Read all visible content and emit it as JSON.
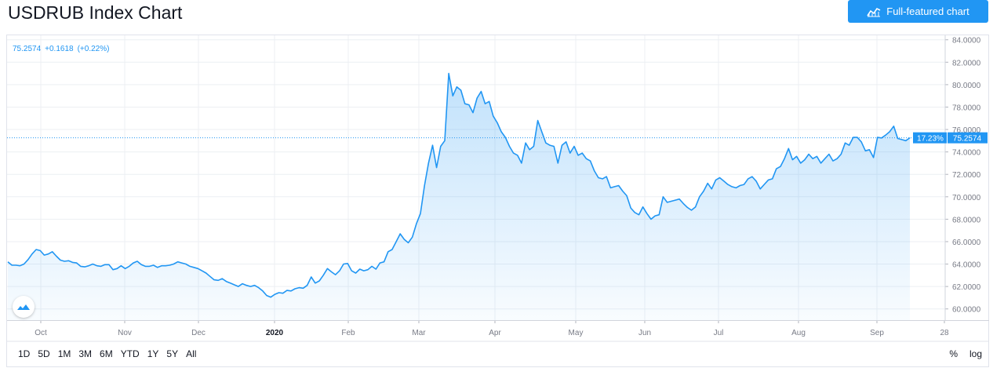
{
  "header": {
    "title": "USDRUB Index Chart",
    "full_chart_label": "Full-featured chart",
    "full_chart_icon": "chart-line-icon"
  },
  "legend": {
    "price": "75.2574",
    "change": "+0.1618",
    "change_pct": "(+0.22%)"
  },
  "price_tag": {
    "pct": "17.23%",
    "value": "75.2574"
  },
  "ranges": [
    "1D",
    "5D",
    "1M",
    "3M",
    "6M",
    "YTD",
    "1Y",
    "5Y",
    "All"
  ],
  "scale_toggles": [
    "%",
    "log"
  ],
  "colors": {
    "line": "#2196f3",
    "tag": "#2196f3",
    "grid": "#eceff3",
    "axis_text": "#787b86"
  },
  "chart_data": {
    "type": "area",
    "ylim": [
      59,
      84.4
    ],
    "y_ticks": [
      "60.0000",
      "62.0000",
      "64.0000",
      "66.0000",
      "68.0000",
      "70.0000",
      "72.0000",
      "74.0000",
      "76.0000",
      "78.0000",
      "80.0000",
      "82.0000",
      "84.0000"
    ],
    "x_ticks": [
      "Oct",
      "Nov",
      "Dec",
      "2020",
      "Feb",
      "Mar",
      "Apr",
      "May",
      "Jun",
      "Jul",
      "Aug",
      "Sep",
      "28"
    ],
    "x_bold": [
      "2020"
    ],
    "series": [
      {
        "values": [
          64.2,
          63.9,
          63.9,
          63.85,
          64.0,
          64.4,
          64.9,
          65.3,
          65.2,
          64.8,
          64.9,
          65.1,
          64.7,
          64.35,
          64.25,
          64.3,
          64.15,
          64.1,
          63.8,
          63.75,
          63.85,
          64.0,
          63.85,
          63.8,
          63.95,
          63.95,
          63.5,
          63.6,
          63.85,
          63.6,
          63.8,
          64.1,
          64.25,
          63.95,
          63.8,
          63.8,
          63.9,
          63.7,
          63.85,
          63.85,
          63.9,
          64.0,
          64.2,
          64.1,
          64.0,
          63.8,
          63.7,
          63.6,
          63.4,
          63.2,
          62.9,
          62.6,
          62.55,
          62.7,
          62.45,
          62.3,
          62.15,
          62.0,
          62.25,
          62.1,
          62.0,
          62.1,
          61.9,
          61.6,
          61.2,
          61.05,
          61.3,
          61.45,
          61.4,
          61.65,
          61.6,
          61.8,
          61.9,
          61.85,
          62.1,
          62.85,
          62.3,
          62.5,
          63.0,
          63.6,
          63.3,
          63.05,
          63.4,
          64.0,
          64.05,
          63.4,
          63.2,
          63.55,
          63.4,
          63.5,
          63.8,
          63.55,
          64.1,
          64.2,
          65.1,
          65.3,
          66.0,
          66.7,
          66.2,
          65.9,
          66.4,
          67.6,
          68.5,
          71.0,
          73.0,
          74.6,
          72.6,
          74.5,
          75.0,
          81.0,
          79.0,
          79.8,
          79.5,
          78.3,
          78.2,
          77.5,
          78.8,
          79.4,
          78.3,
          78.5,
          77.2,
          76.6,
          75.8,
          75.3,
          74.5,
          73.9,
          73.7,
          73.0,
          74.8,
          74.2,
          74.5,
          76.8,
          75.8,
          74.8,
          74.6,
          74.5,
          73.0,
          74.6,
          74.9,
          73.9,
          74.5,
          73.7,
          73.9,
          73.4,
          73.2,
          72.3,
          71.7,
          71.6,
          71.8,
          70.8,
          70.9,
          71.0,
          70.5,
          70.1,
          69.0,
          68.6,
          68.4,
          69.1,
          68.5,
          68.0,
          68.3,
          68.4,
          70.0,
          69.5,
          69.6,
          69.7,
          69.8,
          69.4,
          69.05,
          68.8,
          69.1,
          70.0,
          70.5,
          71.2,
          70.7,
          71.5,
          71.7,
          71.4,
          71.1,
          70.9,
          70.8,
          71.0,
          71.1,
          71.6,
          71.8,
          71.4,
          70.7,
          71.1,
          71.5,
          71.6,
          72.5,
          72.7,
          73.4,
          74.3,
          73.3,
          73.6,
          73.0,
          73.3,
          73.8,
          73.4,
          73.6,
          73.0,
          73.4,
          73.8,
          73.2,
          73.4,
          73.8,
          74.8,
          74.6,
          75.3,
          75.3,
          74.9,
          74.1,
          74.2,
          73.5,
          75.3,
          75.25,
          75.5,
          75.8,
          76.3,
          75.2,
          75.1,
          75.0,
          75.26
        ]
      }
    ]
  }
}
